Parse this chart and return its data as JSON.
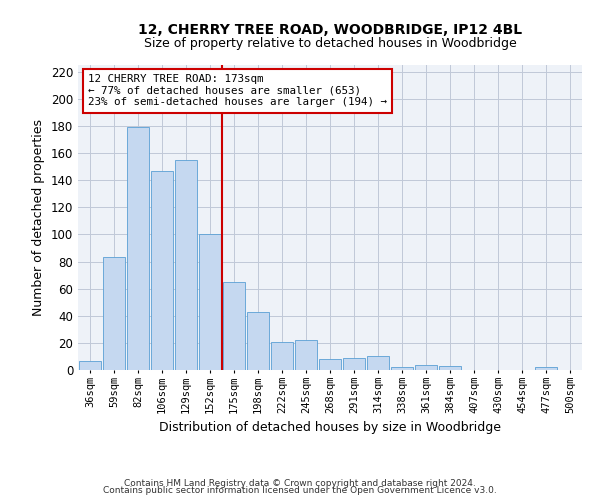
{
  "title1": "12, CHERRY TREE ROAD, WOODBRIDGE, IP12 4BL",
  "title2": "Size of property relative to detached houses in Woodbridge",
  "xlabel": "Distribution of detached houses by size in Woodbridge",
  "ylabel": "Number of detached properties",
  "footer1": "Contains HM Land Registry data © Crown copyright and database right 2024.",
  "footer2": "Contains public sector information licensed under the Open Government Licence v3.0.",
  "bar_labels": [
    "36sqm",
    "59sqm",
    "82sqm",
    "106sqm",
    "129sqm",
    "152sqm",
    "175sqm",
    "198sqm",
    "222sqm",
    "245sqm",
    "268sqm",
    "291sqm",
    "314sqm",
    "338sqm",
    "361sqm",
    "384sqm",
    "407sqm",
    "430sqm",
    "454sqm",
    "477sqm",
    "500sqm"
  ],
  "bar_values": [
    7,
    83,
    179,
    147,
    155,
    100,
    65,
    43,
    21,
    22,
    8,
    9,
    10,
    2,
    4,
    3,
    0,
    0,
    0,
    2,
    0
  ],
  "bar_color": "#c5d8f0",
  "bar_edge_color": "#5a9fd4",
  "grid_color": "#c0c8d8",
  "background_color": "#eef2f8",
  "vline_color": "#cc0000",
  "annotation_text_line1": "12 CHERRY TREE ROAD: 173sqm",
  "annotation_text_line2": "← 77% of detached houses are smaller (653)",
  "annotation_text_line3": "23% of semi-detached houses are larger (194) →",
  "annotation_box_color": "#ffffff",
  "annotation_box_edge": "#cc0000",
  "ylim": [
    0,
    225
  ],
  "yticks": [
    0,
    20,
    40,
    60,
    80,
    100,
    120,
    140,
    160,
    180,
    200,
    220
  ]
}
